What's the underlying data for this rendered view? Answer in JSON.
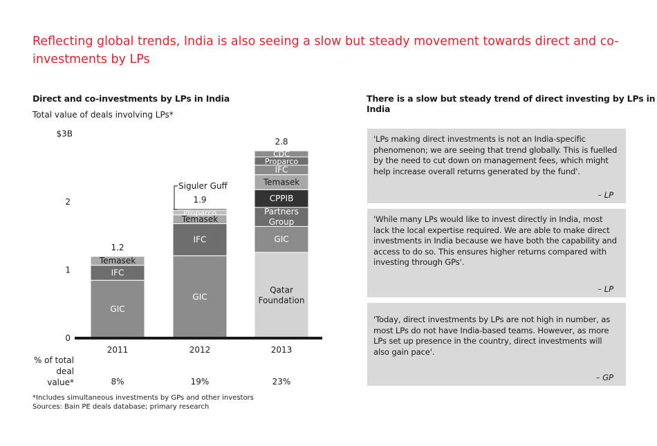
{
  "headline": "Reflecting global trends, India is also seeing a slow but steady movement towards direct and co-investments by LPs",
  "left_panel": {
    "title": "Direct and co-investments by LPs in India",
    "subtitle": "Total value of deals involving LPs*",
    "pct_label": "% of total deal value*",
    "pct_values": [
      "8%",
      "19%",
      "23%"
    ],
    "footnote_1": "*Includes simultaneous investments by GPs and other investors",
    "footnote_2": "Sources: Bain PE deals database; primary research"
  },
  "right_panel": {
    "title": "There is a slow but steady trend of direct investing by LPs in India",
    "quotes": [
      {
        "text": "'LPs making direct investments is not an India-specific phenomenon; we are seeing that trend globally. This is fuelled by the need to cut down on management fees, which might help increase overall returns generated by the fund'.",
        "attribution": "– LP"
      },
      {
        "text": "'While many LPs would like to invest directly in India, most lack the local expertise required. We are able to make direct investments in India because we have both the capability and access to do so. This ensures higher returns compared with investing through GPs'.",
        "attribution": "– LP"
      },
      {
        "text": "'Today, direct investments by LPs are not high in number, as most LPs do not have India-based teams. However, as more LPs set up presence in the country, direct investments will also gain pace'.",
        "attribution": "– GP"
      }
    ]
  },
  "chart_data": {
    "type": "bar",
    "stacked": true,
    "categories": [
      "2011",
      "2012",
      "2013"
    ],
    "totals": [
      "1.2",
      "1.9",
      "2.8"
    ],
    "ylim": [
      0,
      3
    ],
    "yticks": [
      {
        "value": 0,
        "label": "0"
      },
      {
        "value": 1,
        "label": "1"
      },
      {
        "value": 2,
        "label": "2"
      },
      {
        "value": 3,
        "label": "$3B"
      }
    ],
    "bars": [
      {
        "year": "2011",
        "segments": [
          {
            "label": "GIC",
            "value": 0.85,
            "color": "#8c8c8c",
            "text_color": "#ffffff"
          },
          {
            "label": "IFC",
            "value": 0.22,
            "color": "#6e6e6e",
            "text_color": "#ffffff"
          },
          {
            "label": "Temasek",
            "value": 0.13,
            "color": "#a8a8a8",
            "text_color": "#1a1a1a"
          }
        ]
      },
      {
        "year": "2012",
        "segments": [
          {
            "label": "GIC",
            "value": 1.21,
            "color": "#8c8c8c",
            "text_color": "#ffffff"
          },
          {
            "label": "IFC",
            "value": 0.47,
            "color": "#6e6e6e",
            "text_color": "#ffffff"
          },
          {
            "label": "Temasek",
            "value": 0.13,
            "color": "#a8a8a8",
            "text_color": "#1a1a1a"
          },
          {
            "label": "Proparco",
            "value": 0.07,
            "color": "#bfbfbf",
            "text_color": "#ffffff"
          },
          {
            "label": "",
            "value": 0.02,
            "color": "#404040",
            "text_color": "#ffffff"
          }
        ]
      },
      {
        "year": "2013",
        "segments": [
          {
            "label": "Qatar Foundation",
            "value": 1.26,
            "color": "#d3d3d3",
            "text_color": "#1a1a1a"
          },
          {
            "label": "GIC",
            "value": 0.38,
            "color": "#8c8c8c",
            "text_color": "#ffffff"
          },
          {
            "label": "Partners Group",
            "value": 0.28,
            "color": "#6e6e6e",
            "text_color": "#ffffff"
          },
          {
            "label": "CPPIB",
            "value": 0.26,
            "color": "#333333",
            "text_color": "#ffffff"
          },
          {
            "label": "Temasek",
            "value": 0.22,
            "color": "#a8a8a8",
            "text_color": "#1a1a1a"
          },
          {
            "label": "IFC",
            "value": 0.14,
            "color": "#8c8c8c",
            "text_color": "#ffffff"
          },
          {
            "label": "Proparco",
            "value": 0.12,
            "color": "#6e6e6e",
            "text_color": "#ffffff"
          },
          {
            "label": "CDC",
            "value": 0.09,
            "color": "#8c8c8c",
            "text_color": "#ffffff"
          }
        ]
      }
    ],
    "callout": {
      "bar": "2012",
      "label": "Siguler Guff"
    }
  }
}
